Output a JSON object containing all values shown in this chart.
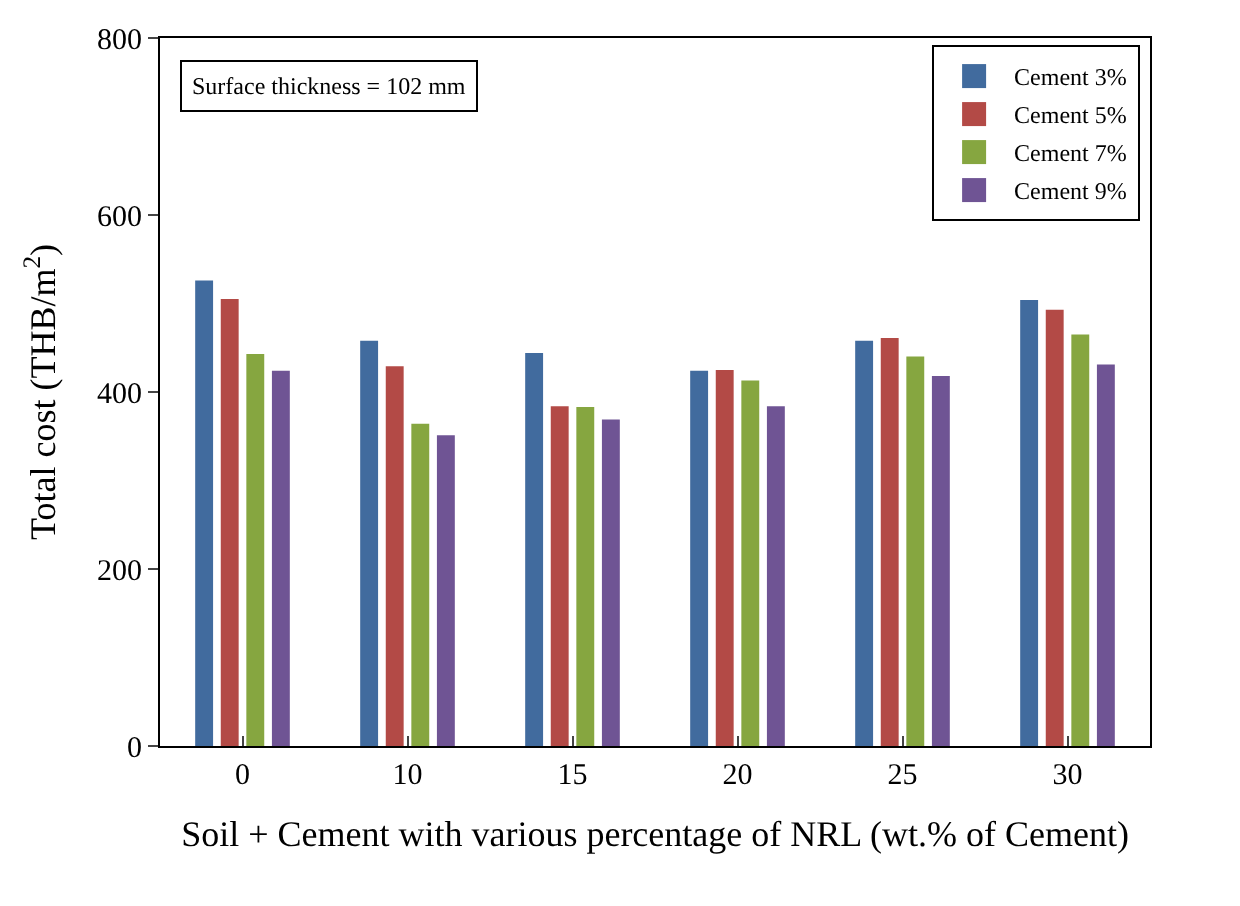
{
  "chart_data": {
    "type": "bar",
    "xlabel": "Soil + Cement with various percentage of NRL (wt.% of Cement)",
    "ylabel": "Total cost (THB/m$^{2}$)",
    "categories": [
      "0",
      "10",
      "15",
      "20",
      "25",
      "30"
    ],
    "series": [
      {
        "name": "Cement 3%",
        "color": "#416b9e",
        "values": [
          526,
          458,
          444,
          424,
          458,
          504
        ]
      },
      {
        "name": "Cement 5%",
        "color": "#b34a46",
        "values": [
          505,
          429,
          384,
          425,
          461,
          493
        ]
      },
      {
        "name": "Cement 7%",
        "color": "#86a640",
        "values": [
          443,
          364,
          383,
          413,
          440,
          465
        ]
      },
      {
        "name": "Cement 9%",
        "color": "#6f5494",
        "values": [
          424,
          351,
          369,
          384,
          418,
          431
        ]
      }
    ],
    "ylim": [
      0,
      800
    ],
    "yticks": [
      0,
      200,
      400,
      600,
      800
    ],
    "annotations": [
      "Surface thickness = 102 mm"
    ],
    "legend": "top right"
  }
}
